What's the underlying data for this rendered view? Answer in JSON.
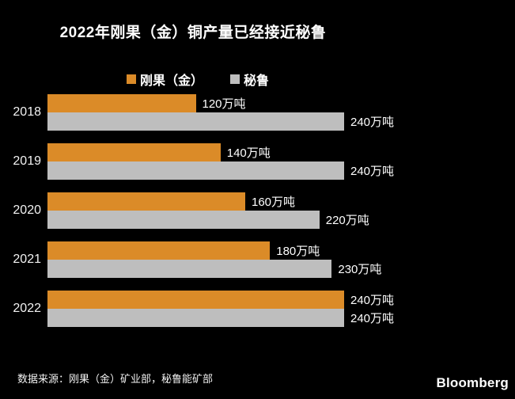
{
  "chart_data": {
    "type": "bar",
    "orientation": "horizontal",
    "title": "2022年刚果（金）铜产量已经接近秘鲁",
    "categories": [
      "2018",
      "2019",
      "2020",
      "2021",
      "2022"
    ],
    "series": [
      {
        "name": "刚果（金）",
        "color": "#DB8B28",
        "values": [
          120,
          140,
          160,
          180,
          240
        ],
        "labels": [
          "120万吨",
          "140万吨",
          "160万吨",
          "180万吨",
          "240万吨"
        ]
      },
      {
        "name": "秘鲁",
        "color": "#BEBEBE",
        "values": [
          240,
          240,
          220,
          230,
          240
        ],
        "labels": [
          "240万吨",
          "240万吨",
          "220万吨",
          "230万吨",
          "240万吨"
        ]
      }
    ],
    "unit": "万吨",
    "xlim": [
      0,
      240
    ],
    "grid": false,
    "legend_position": "top-center"
  },
  "footer": {
    "source": "数据来源：刚果（金）矿业部，秘鲁能矿部",
    "brand": "Bloomberg"
  },
  "colors": {
    "background": "#000000",
    "text": "#FFFFFF",
    "congo_orange": "#DB8B28",
    "peru_gray": "#BEBEBE"
  }
}
